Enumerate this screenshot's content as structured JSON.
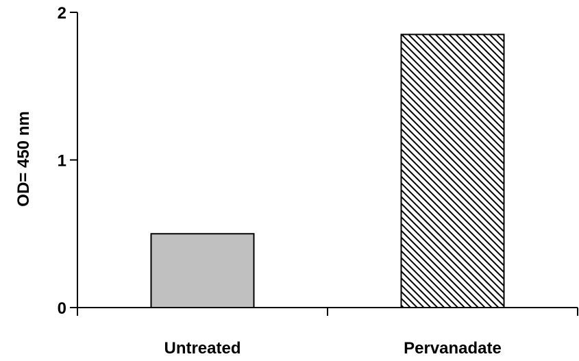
{
  "chart_data": {
    "type": "bar",
    "title": "",
    "xlabel": "",
    "ylabel": "OD= 450 nm",
    "ylim": [
      0,
      2
    ],
    "yticks": [
      0,
      1,
      2
    ],
    "ytick_labels": [
      "0",
      "1",
      "2"
    ],
    "grid": false,
    "categories": [
      "Untreated",
      "Pervanadate"
    ],
    "values": [
      0.5,
      1.85
    ],
    "colors": [
      "#c0c0c0",
      "#ffffff"
    ],
    "fills": [
      "solid",
      "diagonal-hatch"
    ]
  }
}
